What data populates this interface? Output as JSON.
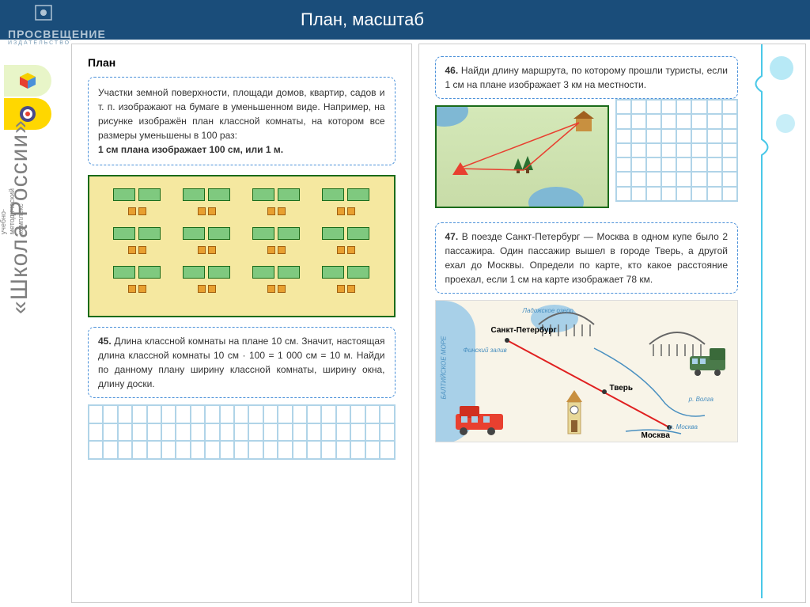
{
  "header": {
    "title": "План,  масштаб"
  },
  "logo": {
    "brand": "ПРОСВЕЩЕНИЕ",
    "tagline": "ИЗДАТЕЛЬСТВО"
  },
  "sidebar": {
    "vertical_title": "«Школа России»",
    "vertical_sub": "учебно-\nметодический\nкомплекс"
  },
  "page_left": {
    "section_title": "План",
    "intro_text": "Участки земной поверхности, площади домов, квартир, садов и т. п. изображают на бумаге в уменьшенном виде. Например, на рисунке изображён план классной комнаты, на котором все размеры уменьшены в 100 раз:",
    "intro_bold": "1 см плана изображает 100 см, или 1 м.",
    "task45_num": "45.",
    "task45_text": " Длина классной комнаты на плане 10 см. Значит, настоящая длина классной комнаты  10 см · 100 = 1 000 см = 10 м.  Найди по данному плану ширину классной комнаты, ширину окна, длину доски.",
    "classroom": {
      "desk_color": "#7fc97f",
      "chair_color": "#e8a030",
      "bg_color": "#f5e8a0",
      "rows": 3,
      "pairs_per_row": 4
    }
  },
  "page_right": {
    "task46_num": "46.",
    "task46_text": " Найди длину маршрута, по которому прошли туристы, если 1 см на плане изображает 3 км на местности.",
    "task47_num": "47.",
    "task47_text": " В поезде Санкт-Петербург — Москва в одном купе было 2 пассажира. Один пассажир вышел в городе Тверь, а другой ехал до Москвы. Определи по карте, кто какое расстояние проехал, если 1 см на карте изображает 78 км.",
    "map": {
      "city1": "Санкт-Петербург",
      "city2": "Тверь",
      "city3": "Москва",
      "water1": "Ладожское озеро",
      "water2": "Финский залив",
      "water3": "БАЛТИЙСКОЕ МОРЕ",
      "river1": "р. Волга",
      "river2": "р. Москва"
    }
  },
  "colors": {
    "header_bg": "#1a4d7a",
    "dash_border": "#4a90d9",
    "grid_line": "#b0d4e8",
    "plan_border": "#1a6b1a",
    "route_red": "#e84030"
  }
}
